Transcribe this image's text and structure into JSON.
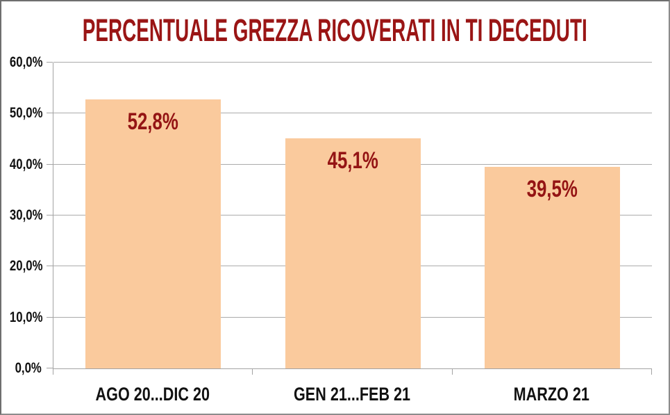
{
  "chart_data": {
    "type": "bar",
    "title": "PERCENTUALE GREZZA RICOVERATI IN TI DECEDUTI",
    "categories": [
      "AGO 20...DIC 20",
      "GEN 21...FEB 21",
      "MARZO 21"
    ],
    "values": [
      52.8,
      45.1,
      39.5
    ],
    "value_labels": [
      "52,8%",
      "45,1%",
      "39,5%"
    ],
    "y_tick_labels": [
      "0,0%",
      "10,0%",
      "20,0%",
      "30,0%",
      "40,0%",
      "50,0%",
      "60,0%"
    ],
    "y_tick_values": [
      0,
      10,
      20,
      30,
      40,
      50,
      60
    ],
    "ylim": [
      0,
      60
    ],
    "grid": true,
    "legend_position": "none",
    "xlabel": "",
    "ylabel": "",
    "colors": {
      "bar_fill": "#FACA9D",
      "title_text": "#9A1515",
      "value_label_text": "#941414",
      "axis_line": "#a3a3a3",
      "grid_line": "#ababab",
      "tick_label_text": "#111111"
    }
  }
}
